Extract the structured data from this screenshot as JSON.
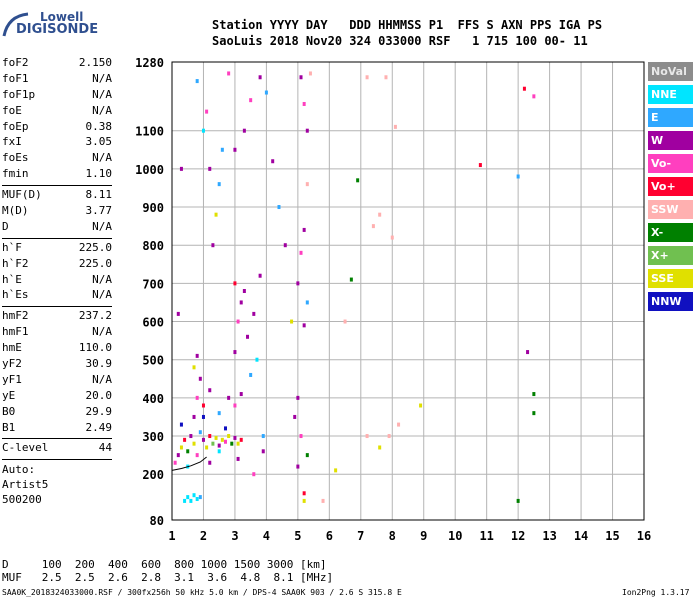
{
  "logo": {
    "top": "Lowell",
    "bottom": "DIGISONDE"
  },
  "header": {
    "line1": "Station YYYY DAY   DDD HHMMSS P1  FFS S AXN PPS IGA PS",
    "line2": "SaoLuis 2018 Nov20 324 033000 RSF   1 715 100 00- 11"
  },
  "params_group1": [
    {
      "name": "foF2",
      "value": "2.150"
    },
    {
      "name": "foF1",
      "value": "N/A"
    },
    {
      "name": "foF1p",
      "value": "N/A"
    },
    {
      "name": "foE",
      "value": "N/A"
    },
    {
      "name": "foEp",
      "value": "0.38"
    },
    {
      "name": "fxI",
      "value": "3.05"
    },
    {
      "name": "foEs",
      "value": "N/A"
    },
    {
      "name": "fmin",
      "value": "1.10"
    }
  ],
  "params_group2": [
    {
      "name": "MUF(D)",
      "value": "8.11"
    },
    {
      "name": "M(D)",
      "value": "3.77"
    },
    {
      "name": "D",
      "value": "N/A"
    }
  ],
  "params_group3": [
    {
      "name": "h`F",
      "value": "225.0"
    },
    {
      "name": "h`F2",
      "value": "225.0"
    },
    {
      "name": "h`E",
      "value": "N/A"
    },
    {
      "name": "h`Es",
      "value": "N/A"
    }
  ],
  "params_group4": [
    {
      "name": "hmF2",
      "value": "237.2"
    },
    {
      "name": "hmF1",
      "value": "N/A"
    },
    {
      "name": "hmE",
      "value": "110.0"
    },
    {
      "name": "yF2",
      "value": "30.9"
    },
    {
      "name": "yF1",
      "value": "N/A"
    },
    {
      "name": "yE",
      "value": "20.0"
    },
    {
      "name": "B0",
      "value": "29.9"
    },
    {
      "name": "B1",
      "value": "2.49"
    }
  ],
  "clevel": {
    "name": "C-level",
    "value": "44"
  },
  "auto": {
    "line1": "Auto:",
    "line2": "Artist5",
    "line3": "500200"
  },
  "legend": [
    {
      "label": "NoVal",
      "color": "#8c8c8c"
    },
    {
      "label": "NNE",
      "color": "#00e5ff"
    },
    {
      "label": "E",
      "color": "#2fa8ff"
    },
    {
      "label": "W",
      "color": "#a000a0"
    },
    {
      "label": "Vo-",
      "color": "#ff3fbf"
    },
    {
      "label": "Vo+",
      "color": "#ff0030"
    },
    {
      "label": "SSW",
      "color": "#ffb0b0"
    },
    {
      "label": "X-",
      "color": "#008000"
    },
    {
      "label": "X+",
      "color": "#70c050"
    },
    {
      "label": "SSE",
      "color": "#e0e000"
    },
    {
      "label": "NNW",
      "color": "#1010c0"
    }
  ],
  "bottom": {
    "d_line": "D     100  200  400  600  800 1000 1500 3000 [km]",
    "muf_line": "MUF   2.5  2.5  2.6  2.8  3.1  3.6  4.8  8.1 [MHz]"
  },
  "footer": {
    "left": "SAA0K_2018324033000.RSF / 300fx256h 50 kHz 5.0 km / DPS-4 SAA0K 903 / 2.6 S 315.8 E",
    "right": "Ion2Png 1.3.17"
  },
  "chart_data": {
    "type": "scatter",
    "xlim": [
      1,
      16
    ],
    "ylim": [
      80,
      1280
    ],
    "x_ticks": [
      1,
      2,
      3,
      4,
      5,
      6,
      7,
      8,
      9,
      10,
      11,
      12,
      13,
      14,
      15,
      16
    ],
    "y_ticks": [
      80,
      200,
      300,
      400,
      500,
      600,
      700,
      800,
      900,
      1000,
      1100,
      1280
    ],
    "grid": true,
    "profile_curve": [
      [
        1.0,
        210
      ],
      [
        1.3,
        215
      ],
      [
        1.6,
        222
      ],
      [
        1.9,
        232
      ],
      [
        2.1,
        245
      ]
    ],
    "points": [
      [
        1.1,
        230,
        "Vo-"
      ],
      [
        1.2,
        250,
        "W"
      ],
      [
        1.3,
        270,
        "SSE"
      ],
      [
        1.4,
        290,
        "Vo+"
      ],
      [
        1.5,
        260,
        "X-"
      ],
      [
        1.6,
        300,
        "W"
      ],
      [
        1.7,
        280,
        "SSE"
      ],
      [
        1.8,
        250,
        "Vo-"
      ],
      [
        1.9,
        310,
        "E"
      ],
      [
        2.0,
        290,
        "W"
      ],
      [
        2.1,
        270,
        "SSE"
      ],
      [
        2.2,
        300,
        "Vo+"
      ],
      [
        2.3,
        280,
        "X+"
      ],
      [
        2.4,
        295,
        "SSE"
      ],
      [
        2.5,
        275,
        "W"
      ],
      [
        2.6,
        290,
        "SSE"
      ],
      [
        2.7,
        285,
        "Vo-"
      ],
      [
        2.8,
        300,
        "SSE"
      ],
      [
        2.9,
        280,
        "X-"
      ],
      [
        3.0,
        295,
        "W"
      ],
      [
        3.1,
        280,
        "SSE"
      ],
      [
        3.2,
        290,
        "Vo+"
      ],
      [
        1.7,
        350,
        "W"
      ],
      [
        1.8,
        400,
        "Vo-"
      ],
      [
        1.9,
        450,
        "W"
      ],
      [
        1.7,
        480,
        "SSE"
      ],
      [
        1.8,
        510,
        "W"
      ],
      [
        2.0,
        380,
        "Vo+"
      ],
      [
        2.2,
        420,
        "W"
      ],
      [
        2.5,
        360,
        "E"
      ],
      [
        2.8,
        400,
        "W"
      ],
      [
        3.0,
        380,
        "Vo-"
      ],
      [
        3.2,
        410,
        "W"
      ],
      [
        3.0,
        520,
        "W"
      ],
      [
        3.1,
        600,
        "Vo-"
      ],
      [
        3.2,
        650,
        "W"
      ],
      [
        3.3,
        680,
        "W"
      ],
      [
        3.0,
        700,
        "Vo+"
      ],
      [
        3.4,
        560,
        "W"
      ],
      [
        3.5,
        460,
        "E"
      ],
      [
        3.6,
        620,
        "W"
      ],
      [
        3.8,
        720,
        "W"
      ],
      [
        3.7,
        500,
        "NNE"
      ],
      [
        2.3,
        800,
        "W"
      ],
      [
        2.4,
        880,
        "SSE"
      ],
      [
        2.2,
        1000,
        "W"
      ],
      [
        2.1,
        1150,
        "Vo-"
      ],
      [
        2.5,
        960,
        "E"
      ],
      [
        3.0,
        1050,
        "W"
      ],
      [
        3.3,
        1100,
        "W"
      ],
      [
        3.5,
        1180,
        "Vo-"
      ],
      [
        3.8,
        1240,
        "W"
      ],
      [
        4.0,
        1200,
        "E"
      ],
      [
        2.8,
        1250,
        "Vo-"
      ],
      [
        4.2,
        1020,
        "W"
      ],
      [
        4.4,
        900,
        "E"
      ],
      [
        4.6,
        800,
        "W"
      ],
      [
        4.8,
        600,
        "SSE"
      ],
      [
        5.0,
        700,
        "W"
      ],
      [
        5.1,
        780,
        "Vo-"
      ],
      [
        5.2,
        840,
        "W"
      ],
      [
        5.3,
        1100,
        "W"
      ],
      [
        5.2,
        1170,
        "Vo-"
      ],
      [
        5.1,
        1240,
        "W"
      ],
      [
        5.3,
        650,
        "E"
      ],
      [
        5.2,
        590,
        "W"
      ],
      [
        5.0,
        400,
        "W"
      ],
      [
        5.1,
        300,
        "Vo-"
      ],
      [
        5.0,
        220,
        "W"
      ],
      [
        5.2,
        150,
        "Vo+"
      ],
      [
        5.4,
        1250,
        "SSW"
      ],
      [
        5.3,
        960,
        "SSW"
      ],
      [
        7.2,
        1240,
        "SSW"
      ],
      [
        7.4,
        850,
        "SSW"
      ],
      [
        7.6,
        880,
        "SSW"
      ],
      [
        8.0,
        820,
        "SSW"
      ],
      [
        8.2,
        330,
        "SSW"
      ],
      [
        7.6,
        270,
        "SSE"
      ],
      [
        7.9,
        300,
        "SSW"
      ],
      [
        7.2,
        300,
        "SSW"
      ],
      [
        6.2,
        210,
        "SSE"
      ],
      [
        6.5,
        600,
        "SSW"
      ],
      [
        7.8,
        1240,
        "SSW"
      ],
      [
        8.1,
        1110,
        "SSW"
      ],
      [
        10.8,
        1010,
        "Vo+"
      ],
      [
        12.2,
        1210,
        "Vo+"
      ],
      [
        12.5,
        1190,
        "Vo-"
      ],
      [
        12.0,
        980,
        "E"
      ],
      [
        12.5,
        410,
        "X-"
      ],
      [
        12.5,
        360,
        "X-"
      ],
      [
        12.3,
        520,
        "W"
      ],
      [
        12.0,
        130,
        "X-"
      ],
      [
        6.9,
        970,
        "X-"
      ],
      [
        6.7,
        710,
        "X-"
      ],
      [
        5.8,
        130,
        "SSW"
      ],
      [
        8.9,
        380,
        "SSE"
      ],
      [
        1.5,
        140,
        "NNE"
      ],
      [
        1.6,
        130,
        "NNE"
      ],
      [
        1.7,
        145,
        "NNE"
      ],
      [
        1.8,
        135,
        "NNE"
      ],
      [
        1.9,
        140,
        "E"
      ],
      [
        1.4,
        130,
        "NNE"
      ],
      [
        1.2,
        620,
        "W"
      ],
      [
        1.3,
        1000,
        "W"
      ],
      [
        1.8,
        1230,
        "E"
      ],
      [
        2.0,
        1100,
        "NNE"
      ],
      [
        2.6,
        1050,
        "E"
      ],
      [
        3.9,
        300,
        "E"
      ],
      [
        3.6,
        200,
        "Vo-"
      ],
      [
        3.9,
        260,
        "W"
      ],
      [
        4.9,
        350,
        "W"
      ],
      [
        5.3,
        250,
        "X-"
      ],
      [
        5.2,
        130,
        "SSE"
      ],
      [
        1.3,
        330,
        "NNW"
      ],
      [
        2.0,
        350,
        "NNW"
      ],
      [
        2.7,
        320,
        "NNW"
      ],
      [
        3.1,
        240,
        "W"
      ],
      [
        2.2,
        230,
        "W"
      ],
      [
        1.5,
        220,
        "NNE"
      ],
      [
        2.5,
        260,
        "NNE"
      ]
    ]
  }
}
